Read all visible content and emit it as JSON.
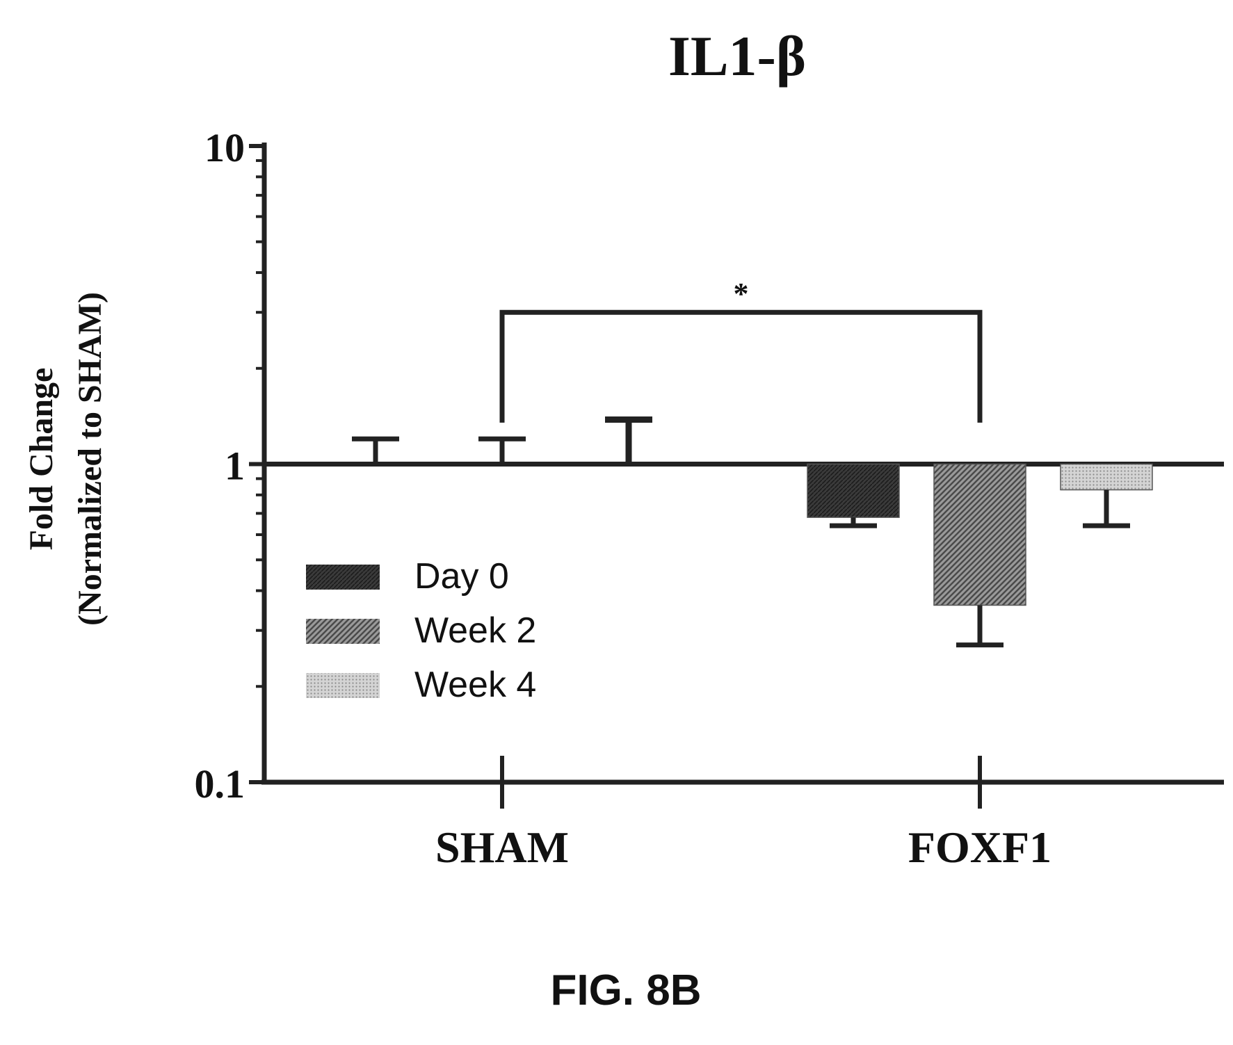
{
  "figure_label": "FIG. 8B",
  "colors": {
    "axis": "#222222",
    "day0": "#333333",
    "week2": "#666666",
    "week4": "#b5b5b5",
    "legend_text": "#8a8a8a"
  },
  "chart_data": {
    "type": "bar",
    "title": "IL1-β",
    "ylabel_line1": "Fold Change",
    "ylabel_line2": "(Normalized to SHAM)",
    "xlabel": "",
    "yscale": "log",
    "ylim": [
      0.1,
      10
    ],
    "y_ticks": [
      {
        "value": 10,
        "label": "10"
      },
      {
        "value": 1,
        "label": "1"
      },
      {
        "value": 0.1,
        "label": "0.1"
      }
    ],
    "categories": [
      "SHAM",
      "FOXF1"
    ],
    "baseline": 1,
    "series": [
      {
        "name": "Day 0",
        "pattern": "solid-dark",
        "values": [
          1.0,
          0.68
        ],
        "errors": [
          0.2,
          0.04
        ]
      },
      {
        "name": "Week 2",
        "pattern": "hatch",
        "values": [
          1.0,
          0.36
        ],
        "errors": [
          0.2,
          0.09
        ]
      },
      {
        "name": "Week 4",
        "pattern": "dotted-light",
        "values": [
          1.0,
          0.83
        ],
        "errors": [
          0.38,
          0.19
        ]
      }
    ],
    "annotations": [
      {
        "type": "significance-bracket",
        "label": "*",
        "between": [
          "SHAM",
          "FOXF1"
        ],
        "y": 3.0
      }
    ],
    "legend": {
      "position": "center-left"
    },
    "grid": false
  }
}
